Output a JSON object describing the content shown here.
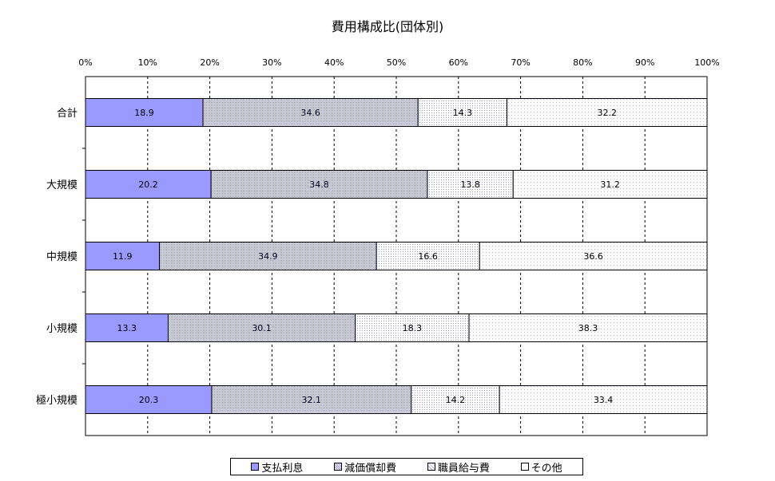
{
  "chart_data": {
    "type": "bar",
    "orientation": "horizontal",
    "stacked": "percent",
    "title": "費用構成比(団体別)",
    "categories": [
      "合計",
      "大規模",
      "中規模",
      "小規模",
      "極小規模"
    ],
    "series": [
      {
        "name": "支払利息",
        "values": [
          18.9,
          20.2,
          11.9,
          13.3,
          20.3
        ],
        "color": "#9999ff",
        "pattern": "solid"
      },
      {
        "name": "減価償却費",
        "values": [
          34.6,
          34.8,
          34.9,
          30.1,
          32.1
        ],
        "color": "#ccccff",
        "pattern": "dense-dots"
      },
      {
        "name": "職員給与費",
        "values": [
          14.3,
          13.8,
          16.6,
          18.3,
          14.2
        ],
        "color": "#eeeeff",
        "pattern": "medium-dots"
      },
      {
        "name": "その他",
        "values": [
          32.2,
          31.2,
          36.6,
          38.3,
          33.4
        ],
        "color": "#ffffff",
        "pattern": "sparse-dots"
      }
    ],
    "x_ticks": [
      "0%",
      "10%",
      "20%",
      "30%",
      "40%",
      "50%",
      "60%",
      "70%",
      "80%",
      "90%",
      "100%"
    ],
    "xlim": [
      0,
      100
    ],
    "x_tick_position": "top",
    "grid": "vertical dashed",
    "legend_position": "bottom"
  }
}
